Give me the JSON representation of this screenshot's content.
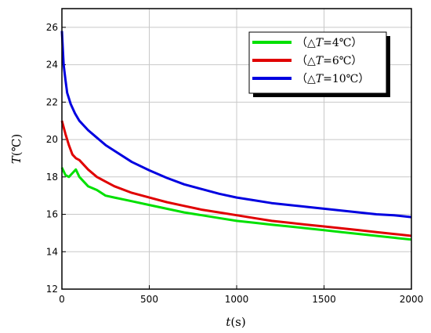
{
  "chart_data": {
    "type": "line",
    "xlabel_var": "t",
    "xlabel_unit": "(s)",
    "ylabel_var": "T",
    "ylabel_unit": "(℃)",
    "xlim": [
      0,
      2000
    ],
    "ylim": [
      12,
      27
    ],
    "xticks": [
      0,
      500,
      1000,
      1500,
      2000
    ],
    "yticks": [
      12,
      14,
      16,
      18,
      20,
      22,
      24,
      26
    ],
    "grid": true,
    "legend_position": "top-right",
    "series": [
      {
        "name": "（△T=4℃）",
        "label_prefix": "（△",
        "label_var": "T",
        "label_suffix": "=4℃）",
        "color": "#00e000",
        "x": [
          0,
          20,
          40,
          60,
          80,
          100,
          150,
          200,
          250,
          300,
          400,
          500,
          600,
          700,
          800,
          900,
          1000,
          1100,
          1200,
          1300,
          1400,
          1500,
          1600,
          1700,
          1800,
          1900,
          2000
        ],
        "y": [
          18.5,
          18.1,
          18.0,
          18.2,
          18.4,
          18.0,
          17.5,
          17.3,
          17.0,
          16.9,
          16.7,
          16.5,
          16.3,
          16.1,
          15.95,
          15.8,
          15.65,
          15.55,
          15.45,
          15.35,
          15.25,
          15.15,
          15.05,
          14.95,
          14.85,
          14.75,
          14.65
        ]
      },
      {
        "name": "（△T=6℃）",
        "label_prefix": "（△",
        "label_var": "T",
        "label_suffix": "=6℃）",
        "color": "#e00000",
        "x": [
          0,
          20,
          40,
          60,
          80,
          100,
          150,
          200,
          250,
          300,
          400,
          500,
          600,
          700,
          800,
          900,
          1000,
          1100,
          1200,
          1300,
          1400,
          1500,
          1600,
          1700,
          1800,
          1900,
          2000
        ],
        "y": [
          21.0,
          20.3,
          19.7,
          19.2,
          19.0,
          18.9,
          18.4,
          18.0,
          17.75,
          17.5,
          17.15,
          16.9,
          16.65,
          16.45,
          16.25,
          16.1,
          15.95,
          15.8,
          15.65,
          15.55,
          15.45,
          15.35,
          15.25,
          15.15,
          15.05,
          14.95,
          14.85
        ]
      },
      {
        "name": "（△T=10℃）",
        "label_prefix": "（△",
        "label_var": "T",
        "label_suffix": "=10℃）",
        "color": "#0000e0",
        "x": [
          0,
          10,
          20,
          30,
          50,
          75,
          100,
          150,
          200,
          250,
          300,
          400,
          500,
          600,
          700,
          800,
          900,
          1000,
          1100,
          1200,
          1300,
          1400,
          1500,
          1600,
          1700,
          1800,
          1900,
          2000
        ],
        "y": [
          25.8,
          24.0,
          23.2,
          22.5,
          21.9,
          21.4,
          21.0,
          20.5,
          20.1,
          19.7,
          19.4,
          18.8,
          18.35,
          17.95,
          17.6,
          17.35,
          17.1,
          16.9,
          16.75,
          16.6,
          16.5,
          16.4,
          16.3,
          16.2,
          16.1,
          16.0,
          15.95,
          15.85
        ]
      }
    ]
  }
}
